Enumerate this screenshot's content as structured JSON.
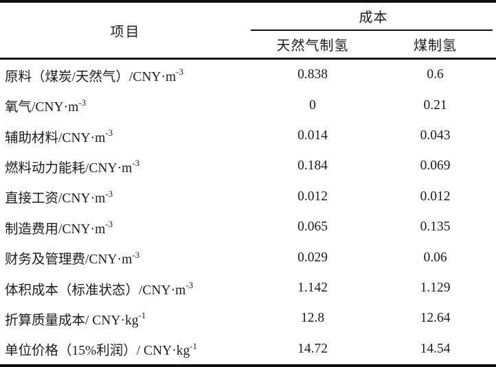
{
  "table": {
    "header": {
      "item_col": "项目",
      "cost_group": "成本",
      "sub_col_1": "天然气制氢",
      "sub_col_2": "煤制氢"
    },
    "rows": [
      {
        "label": "原料（煤炭/天然气）/CNY·m",
        "sup": "-3",
        "natural_gas": "0.838",
        "coal": "0.6"
      },
      {
        "label": "氧气/CNY·m",
        "sup": "-3",
        "natural_gas": "0",
        "coal": "0.21"
      },
      {
        "label": "辅助材料/CNY·m",
        "sup": "-3",
        "natural_gas": "0.014",
        "coal": "0.043"
      },
      {
        "label": "燃料动力能耗/CNY·m",
        "sup": "-3",
        "natural_gas": "0.184",
        "coal": "0.069"
      },
      {
        "label": "直接工资/CNY·m",
        "sup": "-3",
        "natural_gas": "0.012",
        "coal": "0.012"
      },
      {
        "label": "制造费用/CNY·m",
        "sup": "-3",
        "natural_gas": "0.065",
        "coal": "0.135"
      },
      {
        "label": "财务及管理费/CNY·m",
        "sup": "-3",
        "natural_gas": "0.029",
        "coal": "0.06"
      },
      {
        "label": "体积成本（标准状态）/CNY·m",
        "sup": "-3",
        "natural_gas": "1.142",
        "coal": "1.129"
      },
      {
        "label": "折算质量成本/ CNY·kg",
        "sup": "-1",
        "natural_gas": "12.8",
        "coal": "12.64"
      },
      {
        "label": "单位价格（15%利润）/ CNY·kg",
        "sup": "-1",
        "natural_gas": "14.72",
        "coal": "14.54"
      }
    ],
    "colors": {
      "text": "#1b1b1b",
      "rule": "#101010",
      "background": "#ffffff"
    }
  }
}
